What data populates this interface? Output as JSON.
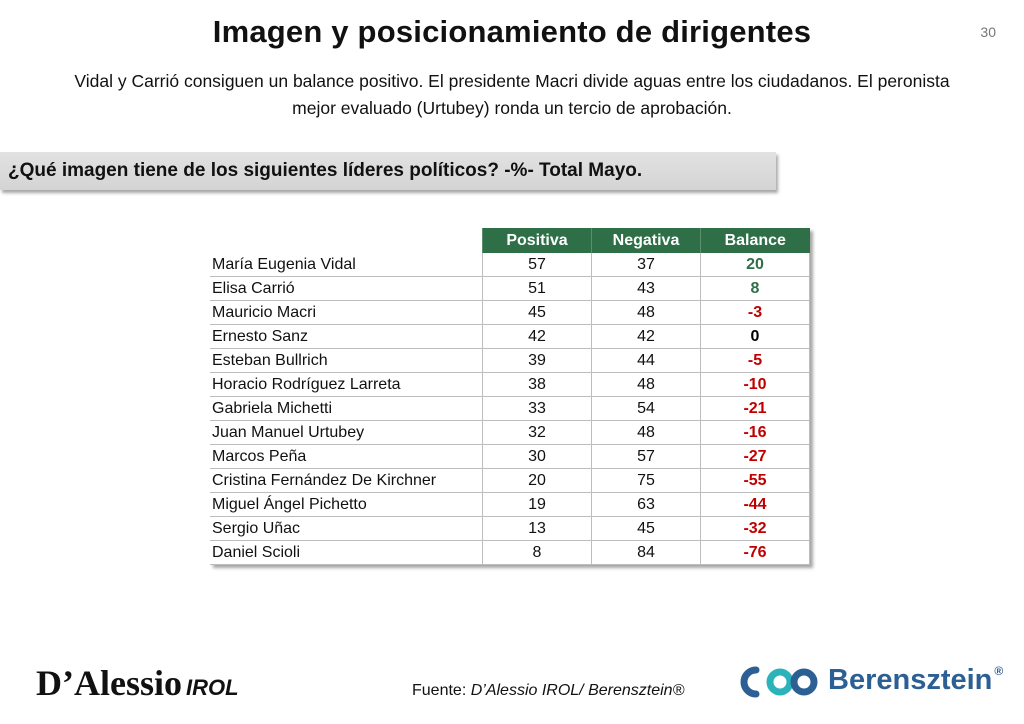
{
  "header": {
    "title": "Imagen y posicionamiento de dirigentes",
    "page_number": "30",
    "subtitle_line1": "Vidal y Carrió consiguen un balance positivo. El presidente Macri divide aguas entre los ciudadanos. El peronista",
    "subtitle_line2": "mejor evaluado (Urtubey) ronda un tercio de aprobación."
  },
  "question": "¿Qué imagen tiene de los siguientes líderes políticos? -%- Total Mayo.",
  "table": {
    "columns": [
      "Positiva",
      "Negativa",
      "Balance"
    ],
    "rows": [
      {
        "name": "María Eugenia Vidal",
        "positiva": "57",
        "negativa": "37",
        "balance": "20"
      },
      {
        "name": "Elisa Carrió",
        "positiva": "51",
        "negativa": "43",
        "balance": "8"
      },
      {
        "name": "Mauricio Macri",
        "positiva": "45",
        "negativa": "48",
        "balance": "-3"
      },
      {
        "name": "Ernesto Sanz",
        "positiva": "42",
        "negativa": "42",
        "balance": "0"
      },
      {
        "name": "Esteban Bullrich",
        "positiva": "39",
        "negativa": "44",
        "balance": "-5"
      },
      {
        "name": "Horacio Rodríguez Larreta",
        "positiva": "38",
        "negativa": "48",
        "balance": "-10"
      },
      {
        "name": "Gabriela Michetti",
        "positiva": "33",
        "negativa": "54",
        "balance": "-21"
      },
      {
        "name": "Juan Manuel Urtubey",
        "positiva": "32",
        "negativa": "48",
        "balance": "-16"
      },
      {
        "name": "Marcos Peña",
        "positiva": "30",
        "negativa": "57",
        "balance": "-27"
      },
      {
        "name": "Cristina Fernández De Kirchner",
        "positiva": "20",
        "negativa": "75",
        "balance": "-55"
      },
      {
        "name": "Miguel Ángel Pichetto",
        "positiva": "19",
        "negativa": "63",
        "balance": "-44"
      },
      {
        "name": "Sergio Uñac",
        "positiva": "13",
        "negativa": "45",
        "balance": "-32"
      },
      {
        "name": "Daniel Scioli",
        "positiva": "8",
        "negativa": "84",
        "balance": "-76"
      }
    ]
  },
  "footer": {
    "logo_left_main": "D’Alessio",
    "logo_left_suffix": "IROL",
    "source_prefix": "Fuente: ",
    "source_italic": "D’Alessio IROL/ Berensztein®",
    "logo_right": "Berensztein",
    "logo_right_mark": "®"
  },
  "colors": {
    "header_green": "#2e6f47",
    "positive_green": "#2e6f47",
    "negative_red": "#c00000",
    "brand_blue": "#2c5f93",
    "brand_teal": "#2bb3b9"
  }
}
